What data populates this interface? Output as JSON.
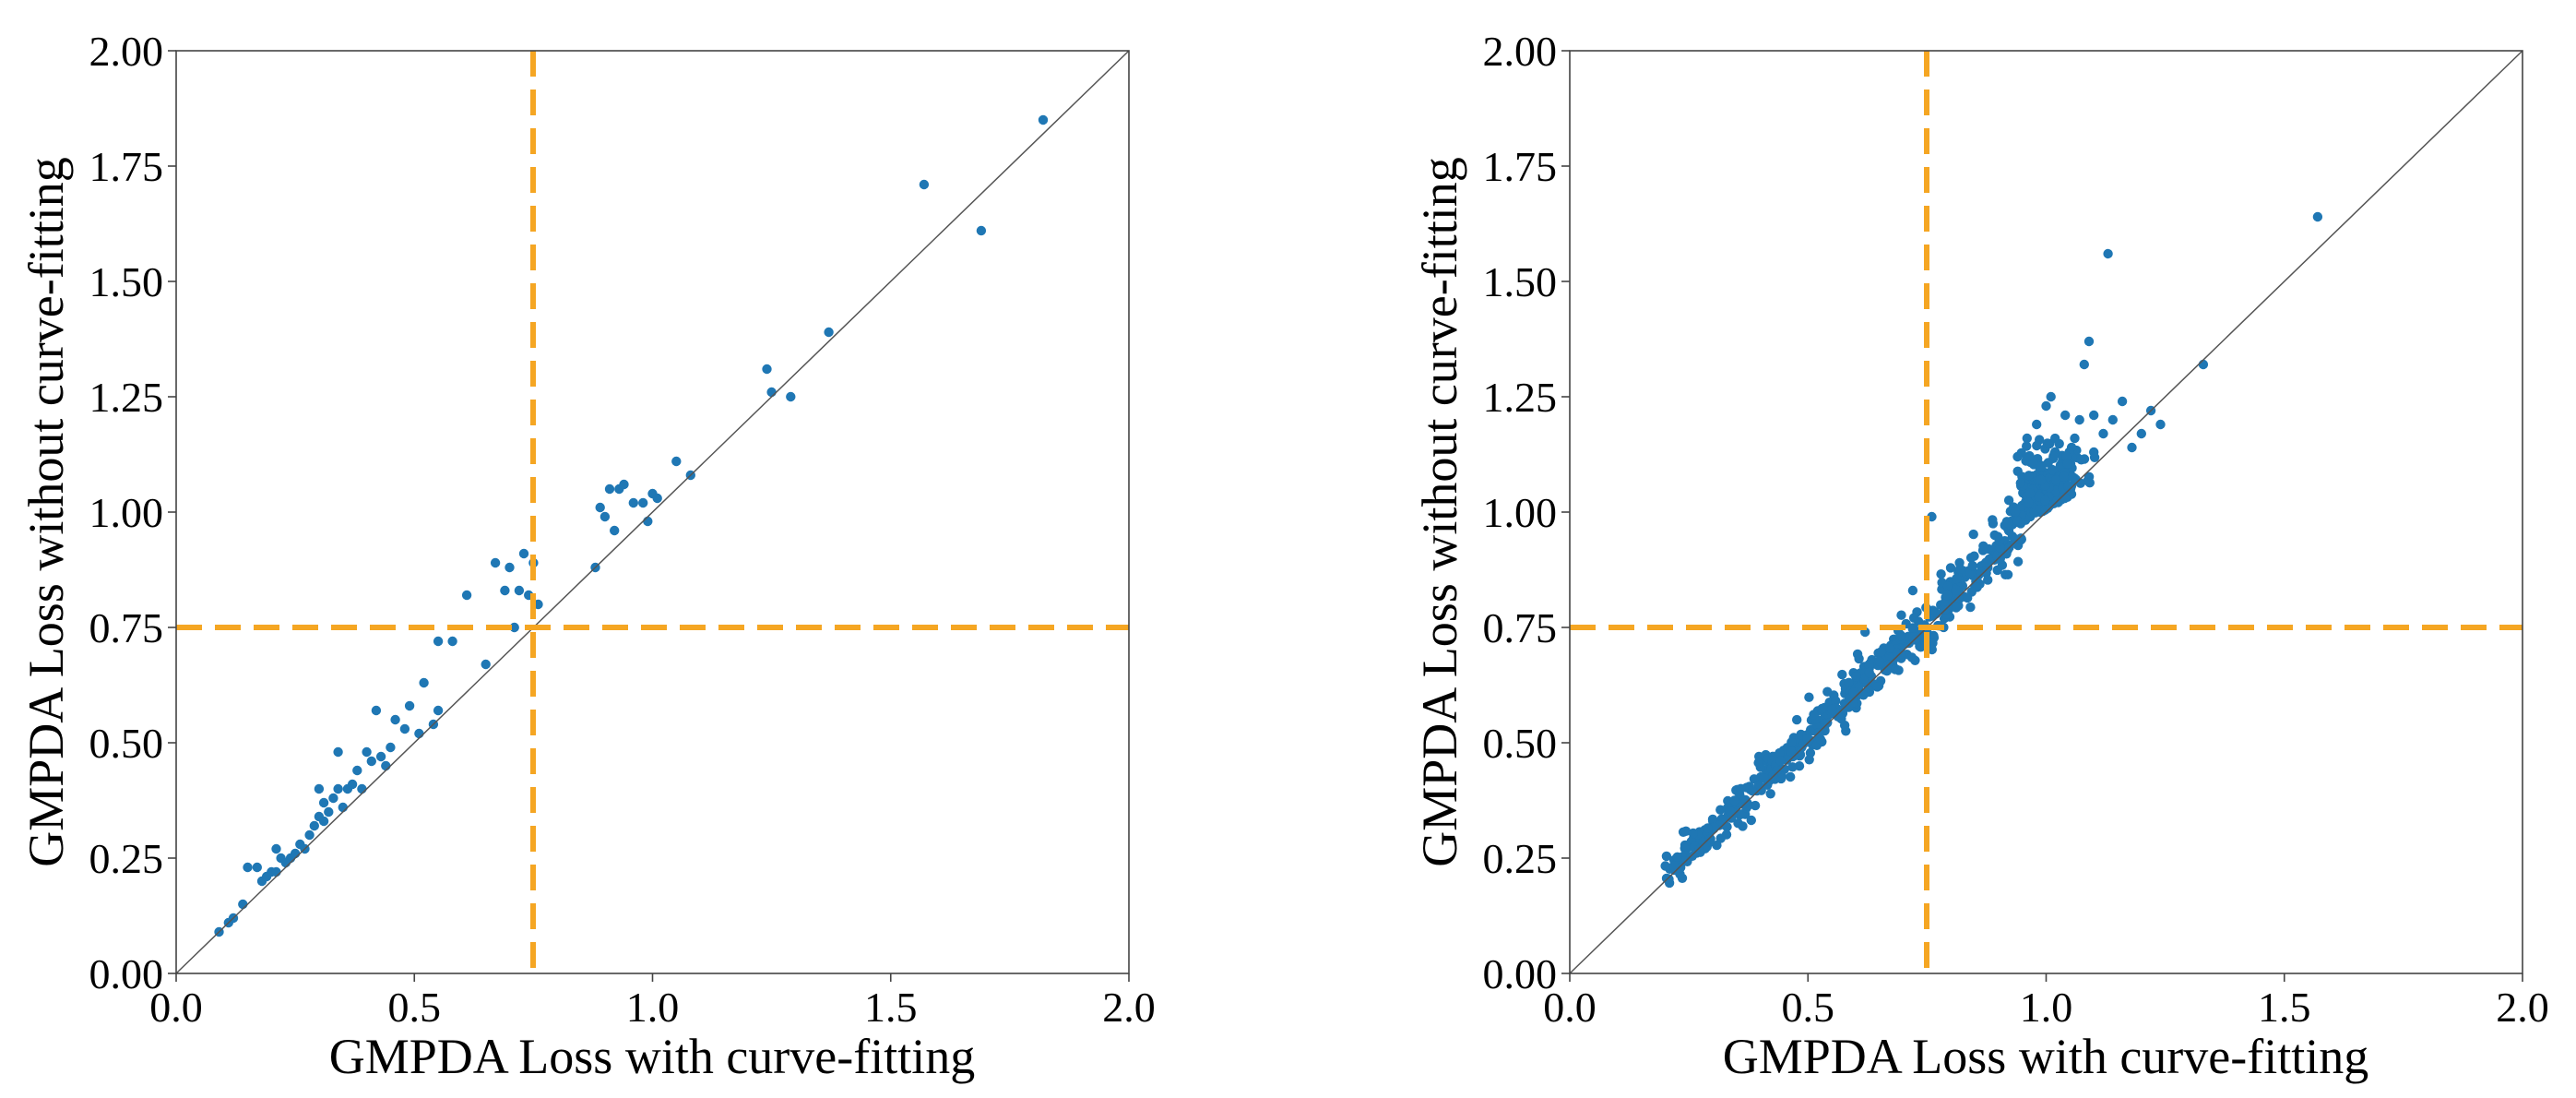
{
  "chart_data": [
    {
      "type": "scatter",
      "title": "",
      "xlabel": "GMPDA Loss with curve-fitting",
      "ylabel": "GMPDA Loss without curve-fitting",
      "xlim": [
        0.0,
        2.0
      ],
      "ylim": [
        0.0,
        2.0
      ],
      "xticks": [
        0.0,
        0.5,
        1.0,
        1.5,
        2.0
      ],
      "yticks": [
        0.0,
        0.25,
        0.5,
        0.75,
        1.0,
        1.25,
        1.5,
        1.75,
        2.0
      ],
      "xtick_labels": [
        "0.0",
        "0.5",
        "1.0",
        "1.5",
        "2.0"
      ],
      "ytick_labels": [
        "0.00",
        "0.25",
        "0.50",
        "0.75",
        "1.00",
        "1.25",
        "1.50",
        "1.75",
        "2.00"
      ],
      "reference_line": "y = x",
      "threshold_x": 0.75,
      "threshold_y": 0.75,
      "colors": {
        "points": "#1f77b4",
        "threshold": "#f5a623",
        "diagonal": "#555555"
      },
      "points": [
        [
          0.09,
          0.09
        ],
        [
          0.11,
          0.11
        ],
        [
          0.12,
          0.12
        ],
        [
          0.14,
          0.15
        ],
        [
          0.15,
          0.23
        ],
        [
          0.17,
          0.23
        ],
        [
          0.18,
          0.2
        ],
        [
          0.19,
          0.21
        ],
        [
          0.2,
          0.22
        ],
        [
          0.21,
          0.22
        ],
        [
          0.21,
          0.27
        ],
        [
          0.22,
          0.25
        ],
        [
          0.23,
          0.24
        ],
        [
          0.24,
          0.25
        ],
        [
          0.25,
          0.26
        ],
        [
          0.26,
          0.28
        ],
        [
          0.27,
          0.27
        ],
        [
          0.28,
          0.3
        ],
        [
          0.29,
          0.32
        ],
        [
          0.3,
          0.34
        ],
        [
          0.3,
          0.4
        ],
        [
          0.31,
          0.33
        ],
        [
          0.31,
          0.37
        ],
        [
          0.32,
          0.35
        ],
        [
          0.33,
          0.38
        ],
        [
          0.34,
          0.4
        ],
        [
          0.34,
          0.48
        ],
        [
          0.35,
          0.36
        ],
        [
          0.36,
          0.4
        ],
        [
          0.37,
          0.41
        ],
        [
          0.38,
          0.44
        ],
        [
          0.39,
          0.4
        ],
        [
          0.4,
          0.48
        ],
        [
          0.41,
          0.46
        ],
        [
          0.42,
          0.57
        ],
        [
          0.43,
          0.47
        ],
        [
          0.44,
          0.45
        ],
        [
          0.45,
          0.49
        ],
        [
          0.46,
          0.55
        ],
        [
          0.48,
          0.53
        ],
        [
          0.49,
          0.58
        ],
        [
          0.51,
          0.52
        ],
        [
          0.52,
          0.63
        ],
        [
          0.54,
          0.54
        ],
        [
          0.55,
          0.57
        ],
        [
          0.55,
          0.72
        ],
        [
          0.58,
          0.72
        ],
        [
          0.61,
          0.82
        ],
        [
          0.65,
          0.67
        ],
        [
          0.67,
          0.89
        ],
        [
          0.69,
          0.83
        ],
        [
          0.7,
          0.88
        ],
        [
          0.71,
          0.75
        ],
        [
          0.72,
          0.83
        ],
        [
          0.73,
          0.91
        ],
        [
          0.74,
          0.82
        ],
        [
          0.75,
          0.89
        ],
        [
          0.76,
          0.8
        ],
        [
          0.88,
          0.88
        ],
        [
          0.89,
          1.01
        ],
        [
          0.9,
          0.99
        ],
        [
          0.91,
          1.05
        ],
        [
          0.92,
          0.96
        ],
        [
          0.93,
          1.05
        ],
        [
          0.94,
          1.06
        ],
        [
          0.96,
          1.02
        ],
        [
          0.98,
          1.02
        ],
        [
          0.99,
          0.98
        ],
        [
          1.0,
          1.04
        ],
        [
          1.01,
          1.03
        ],
        [
          1.05,
          1.11
        ],
        [
          1.08,
          1.08
        ],
        [
          1.24,
          1.31
        ],
        [
          1.25,
          1.26
        ],
        [
          1.29,
          1.25
        ],
        [
          1.37,
          1.39
        ],
        [
          1.57,
          1.71
        ],
        [
          1.69,
          1.61
        ],
        [
          1.82,
          1.85
        ]
      ]
    },
    {
      "type": "scatter",
      "title": "",
      "xlabel": "GMPDA Loss with curve-fitting",
      "ylabel": "GMPDA Loss without curve-fitting",
      "xlim": [
        0.0,
        2.0
      ],
      "ylim": [
        0.0,
        2.0
      ],
      "xticks": [
        0.0,
        0.5,
        1.0,
        1.5,
        2.0
      ],
      "yticks": [
        0.0,
        0.25,
        0.5,
        0.75,
        1.0,
        1.25,
        1.5,
        1.75,
        2.0
      ],
      "xtick_labels": [
        "0.0",
        "0.5",
        "1.0",
        "1.5",
        "2.0"
      ],
      "ytick_labels": [
        "0.00",
        "0.25",
        "0.50",
        "0.75",
        "1.00",
        "1.25",
        "1.50",
        "1.75",
        "2.00"
      ],
      "reference_line": "y = x",
      "threshold_x": 0.75,
      "threshold_y": 0.75,
      "colors": {
        "points": "#1f77b4",
        "threshold": "#f5a623",
        "diagonal": "#555555"
      },
      "points_description": "about 800 points tightly along y = x from x≈0.2 to x≈0.95, dense cluster near (1.0, 1.0), several outliers above the diagonal near x≈1.0–1.3",
      "generated_band": {
        "x_min": 0.2,
        "x_max": 0.95,
        "count": 520,
        "offset": 0.012,
        "spread": 0.028
      },
      "generated_cluster": {
        "cx": 1.0,
        "cy": 1.02,
        "count": 260,
        "sx": 0.035,
        "sy": 0.06
      },
      "outliers": [
        [
          0.98,
          1.19
        ],
        [
          1.0,
          1.23
        ],
        [
          1.01,
          1.25
        ],
        [
          1.04,
          1.21
        ],
        [
          1.07,
          1.2
        ],
        [
          1.08,
          1.32
        ],
        [
          1.09,
          1.37
        ],
        [
          1.1,
          1.21
        ],
        [
          1.12,
          1.17
        ],
        [
          1.13,
          1.56
        ],
        [
          1.14,
          1.2
        ],
        [
          1.16,
          1.24
        ],
        [
          1.18,
          1.14
        ],
        [
          1.2,
          1.17
        ],
        [
          1.22,
          1.22
        ],
        [
          1.24,
          1.19
        ],
        [
          1.1,
          1.13
        ],
        [
          1.06,
          1.16
        ],
        [
          0.96,
          1.16
        ],
        [
          0.94,
          1.12
        ],
        [
          1.33,
          1.32
        ],
        [
          1.57,
          1.64
        ],
        [
          0.76,
          0.99
        ],
        [
          0.72,
          0.83
        ],
        [
          0.62,
          0.74
        ]
      ]
    }
  ]
}
